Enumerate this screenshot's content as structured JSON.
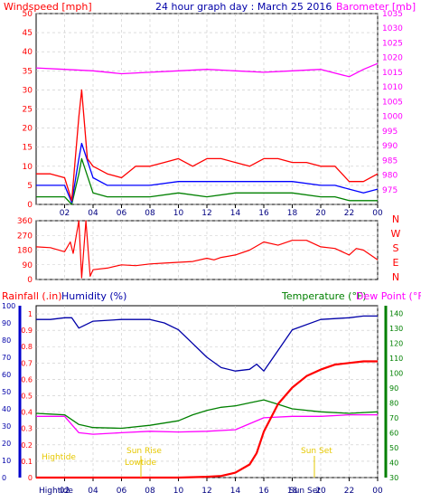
{
  "chart_data": [
    {
      "type": "line",
      "title": "24 hour graph day : March 25 2016",
      "ylabel_left": "Windspeed [mph]",
      "ylabel_right": "Barometer [mb]",
      "ylim": [
        0,
        50
      ],
      "ylim_right": [
        970,
        1035
      ],
      "y_ticks": [
        0,
        5,
        10,
        15,
        20,
        25,
        30,
        35,
        40,
        45,
        50
      ],
      "y_ticks_right": [
        975,
        980,
        985,
        990,
        995,
        1000,
        1005,
        1010,
        1015,
        1020,
        1025,
        1030,
        1035
      ],
      "x_ticks": [
        "02",
        "04",
        "06",
        "08",
        "10",
        "12",
        "14",
        "16",
        "18",
        "20",
        "22",
        "00"
      ],
      "series": [
        {
          "name": "Windspeed",
          "axis": "left",
          "color": "#ff0000",
          "x": [
            0,
            1,
            2,
            2.5,
            3,
            3.2,
            3.6,
            4,
            5,
            6,
            7,
            8,
            9,
            10,
            11,
            12,
            13,
            14,
            15,
            16,
            17,
            18,
            19,
            20,
            21,
            22,
            23,
            24
          ],
          "y": [
            8,
            8,
            7,
            1,
            23,
            30,
            12,
            10,
            8,
            7,
            10,
            10,
            11,
            12,
            10,
            12,
            12,
            11,
            10,
            12,
            12,
            11,
            11,
            10,
            10,
            6,
            6,
            8
          ]
        },
        {
          "name": "Barometer",
          "axis": "right",
          "color": "#ff00ff",
          "x": [
            0,
            2,
            4,
            6,
            8,
            10,
            12,
            14,
            16,
            18,
            20,
            22,
            23,
            24
          ],
          "y": [
            1016.5,
            1016,
            1015.5,
            1014.5,
            1015,
            1015.5,
            1016,
            1015.5,
            1015,
            1015.5,
            1016,
            1013.5,
            1016,
            1018
          ]
        },
        {
          "color": "#0000ff",
          "x": [
            0,
            1,
            2,
            2.5,
            3,
            3.2,
            4,
            5,
            6,
            8,
            10,
            12,
            14,
            16,
            18,
            20,
            21,
            22,
            23,
            24
          ],
          "y": [
            5,
            5,
            5,
            0.5,
            12,
            16,
            7,
            5,
            5,
            5,
            6,
            6,
            6,
            6,
            6,
            5,
            5,
            4,
            3,
            4
          ]
        },
        {
          "color": "#008000",
          "x": [
            0,
            1,
            2,
            2.5,
            3,
            3.2,
            4,
            5,
            6,
            8,
            10,
            12,
            14,
            16,
            18,
            20,
            21,
            22,
            23,
            24
          ],
          "y": [
            2,
            2,
            2,
            0,
            8,
            12,
            3,
            2,
            2,
            2,
            3,
            2,
            3,
            3,
            3,
            2,
            2,
            1,
            1,
            1
          ]
        }
      ]
    },
    {
      "type": "line",
      "ylim": [
        0,
        360
      ],
      "y_ticks": [
        0,
        90,
        180,
        270,
        360
      ],
      "y_ticks_right": [
        "N",
        "W",
        "S",
        "E",
        "N"
      ],
      "series": [
        {
          "name": "Wind direction",
          "color": "#ff0000",
          "x": [
            0,
            1,
            2,
            2.4,
            2.6,
            3,
            3.2,
            3.5,
            3.8,
            4,
            5,
            6,
            7,
            8,
            9,
            10,
            11,
            12,
            12.5,
            13,
            14,
            15,
            16,
            17,
            18,
            19,
            20,
            21,
            22,
            22.5,
            23,
            24
          ],
          "y": [
            200,
            195,
            170,
            230,
            160,
            360,
            10,
            360,
            20,
            60,
            70,
            90,
            85,
            95,
            100,
            105,
            110,
            130,
            120,
            135,
            150,
            180,
            230,
            210,
            240,
            240,
            200,
            190,
            150,
            190,
            180,
            120
          ]
        }
      ]
    },
    {
      "type": "line",
      "ylabel_left": "Rainfall (.in)",
      "ylabel_left2": "Humidity (%)",
      "ylabel_right": "Temperature (°F)",
      "ylabel_right2": "Dew Point (°F)",
      "ylim": [
        0,
        1.05
      ],
      "ylim_humidity": [
        0,
        100
      ],
      "ylim_right": [
        30,
        145
      ],
      "y_ticks": [
        0,
        0.1,
        0.2,
        0.3,
        0.4,
        0.5,
        0.6,
        0.7,
        0.8,
        0.9,
        1
      ],
      "y_ticks_humidity": [
        0,
        10,
        20,
        30,
        40,
        50,
        60,
        70,
        80,
        90,
        100
      ],
      "y_ticks_right": [
        30,
        40,
        50,
        60,
        70,
        80,
        90,
        100,
        110,
        120,
        130,
        140
      ],
      "x_ticks": [
        "02",
        "04",
        "06",
        "08",
        "10",
        "12",
        "14",
        "16",
        "18",
        "20",
        "22",
        "00"
      ],
      "series": [
        {
          "name": "Humidity",
          "axis": "humidity",
          "color": "#0000a8",
          "x": [
            0,
            1,
            2,
            2.5,
            3,
            4,
            6,
            8,
            9,
            10,
            11,
            12,
            13,
            14,
            15,
            15.5,
            16,
            17,
            18,
            20,
            22,
            23,
            24
          ],
          "y": [
            92,
            92,
            93,
            93,
            87,
            91,
            92,
            92,
            90,
            86,
            78,
            70,
            64,
            62,
            63,
            66,
            62,
            74,
            86,
            92,
            93,
            94,
            94
          ]
        },
        {
          "name": "Temperature",
          "axis": "right",
          "color": "#008000",
          "x": [
            0,
            1,
            2,
            3,
            4,
            6,
            8,
            9,
            10,
            11,
            12,
            13,
            14,
            15,
            16,
            17,
            18,
            20,
            22,
            24
          ],
          "y": [
            73,
            72.5,
            72,
            65.5,
            63.5,
            63,
            65,
            66.5,
            68,
            72,
            75,
            77,
            78,
            80,
            82,
            79,
            76,
            74,
            73,
            74
          ]
        },
        {
          "name": "Dew Point",
          "axis": "right",
          "color": "#ff00ff",
          "x": [
            0,
            1,
            2,
            3,
            4,
            6,
            8,
            10,
            12,
            14,
            16,
            18,
            20,
            22,
            24
          ],
          "y": [
            71,
            71,
            71,
            60,
            59,
            60,
            61,
            60.5,
            61,
            62,
            70,
            71,
            71,
            72,
            72
          ]
        },
        {
          "name": "Rainfall",
          "axis": "left",
          "color": "#ff0000",
          "x": [
            0,
            8,
            10,
            12,
            13,
            14,
            15,
            15.5,
            16,
            17,
            18,
            19,
            20,
            21,
            22,
            23,
            24
          ],
          "y": [
            0,
            0,
            0,
            0.005,
            0.01,
            0.03,
            0.08,
            0.15,
            0.28,
            0.45,
            0.55,
            0.62,
            0.66,
            0.69,
            0.7,
            0.71,
            0.71
          ]
        }
      ],
      "annotations": [
        "Hightide",
        "Lowtide",
        "Sun Rise",
        "Sun Set"
      ],
      "x_labels_bottom": [
        "Hightide",
        "02",
        "04",
        "06",
        "08",
        "10",
        "12",
        "14",
        "16",
        "18",
        "20",
        "22",
        "00",
        "Sun Set"
      ]
    }
  ]
}
